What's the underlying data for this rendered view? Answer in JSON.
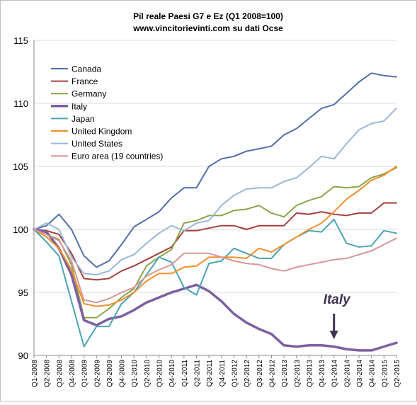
{
  "chart_data": {
    "type": "line",
    "title": "Pil reale Paesi G7 e Ez (Q1 2008=100)",
    "subtitle": "www.vincitorievinti.com su dati Ocse",
    "xlabel": "",
    "ylabel": "",
    "ylim": [
      90,
      115
    ],
    "yticks": [
      90,
      95,
      100,
      105,
      110,
      115
    ],
    "grid": true,
    "legend": "top-left",
    "annotation": {
      "text": "Italy",
      "x": "Q1-2014",
      "color": "#403152"
    },
    "categories": [
      "Q1-2008",
      "Q2-2008",
      "Q3-2008",
      "Q4-2008",
      "Q1-2009",
      "Q2-2009",
      "Q3-2009",
      "Q4-2009",
      "Q1-2010",
      "Q2-2010",
      "Q3-2010",
      "Q4-2010",
      "Q1-2011",
      "Q2-2011",
      "Q3-2011",
      "Q4-2011",
      "Q1-2012",
      "Q2-2012",
      "Q3-2012",
      "Q4-2012",
      "Q1-2013",
      "Q2-2013",
      "Q3-2013",
      "Q4-2013",
      "Q1-2014",
      "Q2-2014",
      "Q3-2014",
      "Q4-2014",
      "Q1-2015",
      "Q2-2015"
    ],
    "series": [
      {
        "name": "Canada",
        "color": "#4f6fa8",
        "width": 2,
        "values": [
          100.0,
          100.3,
          101.2,
          100.0,
          97.9,
          97.0,
          97.5,
          98.8,
          100.2,
          100.8,
          101.4,
          102.5,
          103.3,
          103.3,
          105.0,
          105.6,
          105.8,
          106.2,
          106.4,
          106.6,
          107.5,
          108.0,
          108.8,
          109.6,
          109.9,
          110.8,
          111.7,
          112.4,
          112.2,
          112.1
        ]
      },
      {
        "name": "France",
        "color": "#a5403c",
        "width": 2,
        "values": [
          100.0,
          99.9,
          99.6,
          98.1,
          96.1,
          96.0,
          96.1,
          96.7,
          97.1,
          97.6,
          98.1,
          98.6,
          99.9,
          99.9,
          100.1,
          100.3,
          100.3,
          100.0,
          100.3,
          100.3,
          100.3,
          101.3,
          101.2,
          101.4,
          101.2,
          101.1,
          101.3,
          101.3,
          102.1,
          102.1
        ]
      },
      {
        "name": "Germany",
        "color": "#8ba54a",
        "width": 2,
        "values": [
          100.0,
          99.6,
          99.2,
          97.2,
          93.0,
          93.0,
          93.7,
          94.6,
          95.3,
          97.1,
          97.8,
          98.4,
          100.5,
          100.7,
          101.1,
          101.1,
          101.5,
          101.6,
          101.9,
          101.3,
          101.0,
          101.9,
          102.3,
          102.6,
          103.4,
          103.3,
          103.4,
          104.1,
          104.4,
          104.9
        ]
      },
      {
        "name": "Italy",
        "color": "#7d60a0",
        "width": 3.5,
        "values": [
          100.0,
          99.8,
          98.5,
          96.4,
          92.8,
          92.4,
          92.9,
          93.1,
          93.6,
          94.2,
          94.6,
          95.0,
          95.3,
          95.6,
          95.1,
          94.3,
          93.3,
          92.6,
          92.1,
          91.7,
          90.8,
          90.7,
          90.8,
          90.8,
          90.7,
          90.5,
          90.4,
          90.4,
          90.7,
          91.0
        ]
      },
      {
        "name": "Japan",
        "color": "#4aa3b5",
        "width": 2,
        "values": [
          100.0,
          99.0,
          97.9,
          94.3,
          90.7,
          92.3,
          92.3,
          94.1,
          95.0,
          96.4,
          97.8,
          97.4,
          95.4,
          94.8,
          97.3,
          97.5,
          98.5,
          98.1,
          97.7,
          97.7,
          98.8,
          99.4,
          99.9,
          99.8,
          100.8,
          98.9,
          98.6,
          98.7,
          99.9,
          99.7
        ]
      },
      {
        "name": "United Kingdom",
        "color": "#f08f2a",
        "width": 2,
        "values": [
          100.0,
          99.4,
          98.5,
          96.8,
          94.1,
          93.9,
          94.0,
          94.4,
          95.0,
          95.9,
          96.5,
          96.5,
          97.0,
          97.1,
          97.8,
          97.8,
          97.8,
          97.7,
          98.5,
          98.2,
          98.8,
          99.4,
          100.0,
          100.5,
          101.4,
          102.4,
          103.1,
          103.9,
          104.3,
          105.0
        ]
      },
      {
        "name": "United States",
        "color": "#9bb7d9",
        "width": 2,
        "values": [
          100.0,
          100.5,
          100.0,
          97.8,
          96.5,
          96.4,
          96.7,
          97.6,
          98.0,
          98.9,
          99.7,
          100.3,
          99.9,
          100.5,
          100.7,
          101.9,
          102.7,
          103.2,
          103.3,
          103.3,
          103.8,
          104.1,
          104.9,
          105.8,
          105.6,
          106.8,
          107.9,
          108.4,
          108.6,
          109.6
        ]
      },
      {
        "name": "Euro area (19 countries)",
        "color": "#d99594",
        "width": 2,
        "values": [
          100.0,
          99.6,
          99.1,
          97.5,
          94.4,
          94.2,
          94.5,
          95.0,
          95.4,
          96.3,
          96.8,
          97.2,
          98.1,
          98.1,
          98.1,
          97.8,
          97.5,
          97.3,
          97.2,
          96.9,
          96.7,
          97.0,
          97.2,
          97.4,
          97.6,
          97.7,
          98.0,
          98.3,
          98.8,
          99.3
        ]
      }
    ]
  }
}
